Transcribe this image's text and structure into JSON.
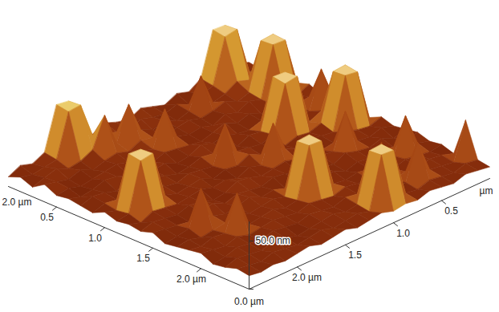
{
  "chart_data": {
    "type": "surface3d",
    "x": [
      0,
      0.125,
      0.25,
      0.375,
      0.5,
      0.625,
      0.75,
      0.875,
      1,
      1.125,
      1.25,
      1.375,
      1.5,
      1.625,
      1.75,
      1.875,
      2,
      2.125,
      2.25,
      2.375,
      2.5
    ],
    "y": [
      0,
      0.125,
      0.25,
      0.375,
      0.5,
      0.625,
      0.75,
      0.875,
      1,
      1.125,
      1.25,
      1.375,
      1.5,
      1.625,
      1.75,
      1.875,
      2,
      2.125,
      2.25,
      2.375,
      2.5
    ],
    "heights": [
      [
        14,
        18,
        64,
        65,
        20,
        12,
        16,
        10,
        14,
        18,
        12,
        15,
        20,
        14,
        22,
        60,
        62,
        18,
        12,
        16,
        10
      ],
      [
        12,
        16,
        65,
        63,
        18,
        14,
        10,
        16,
        12,
        14,
        18,
        12,
        16,
        20,
        24,
        61,
        60,
        16,
        14,
        12,
        15
      ],
      [
        16,
        14,
        18,
        22,
        15,
        12,
        45,
        14,
        10,
        16,
        12,
        18,
        50,
        16,
        50,
        20,
        14,
        12,
        18,
        14,
        10
      ],
      [
        10,
        65,
        64,
        16,
        12,
        18,
        14,
        12,
        16,
        14,
        10,
        15,
        18,
        12,
        16,
        14,
        10,
        16,
        12,
        15,
        18
      ],
      [
        14,
        64,
        65,
        14,
        18,
        12,
        16,
        10,
        14,
        12,
        16,
        50,
        14,
        18,
        12,
        16,
        14,
        12,
        10,
        14,
        12
      ],
      [
        18,
        12,
        16,
        14,
        10,
        16,
        12,
        18,
        14,
        10,
        12,
        14,
        16,
        12,
        18,
        10,
        14,
        16,
        12,
        10,
        14
      ],
      [
        12,
        16,
        14,
        18,
        12,
        14,
        10,
        12,
        16,
        14,
        18,
        12,
        10,
        16,
        14,
        12,
        18,
        10,
        14,
        16,
        12
      ],
      [
        16,
        50,
        12,
        14,
        64,
        65,
        14,
        16,
        10,
        12,
        14,
        16,
        12,
        10,
        14,
        18,
        12,
        16,
        12,
        14,
        10
      ],
      [
        12,
        14,
        18,
        12,
        65,
        63,
        16,
        12,
        14,
        16,
        50,
        12,
        14,
        16,
        12,
        14,
        18,
        64,
        65,
        12,
        16
      ],
      [
        14,
        65,
        64,
        16,
        12,
        14,
        10,
        14,
        12,
        18,
        12,
        14,
        10,
        16,
        14,
        12,
        16,
        65,
        63,
        14,
        12
      ],
      [
        10,
        63,
        65,
        12,
        14,
        16,
        12,
        18,
        50,
        12,
        16,
        10,
        14,
        12,
        16,
        14,
        12,
        14,
        16,
        10,
        14
      ],
      [
        16,
        12,
        14,
        18,
        12,
        10,
        14,
        12,
        16,
        14,
        12,
        16,
        18,
        12,
        10,
        14,
        16,
        12,
        14,
        16,
        12
      ],
      [
        12,
        16,
        12,
        14,
        50,
        14,
        16,
        12,
        10,
        14,
        16,
        12,
        14,
        16,
        12,
        18,
        14,
        10,
        12,
        14,
        16
      ],
      [
        14,
        10,
        16,
        12,
        14,
        18,
        12,
        14,
        16,
        12,
        10,
        14,
        12,
        18,
        14,
        12,
        16,
        50,
        14,
        12,
        10
      ],
      [
        16,
        14,
        12,
        16,
        12,
        14,
        10,
        16,
        12,
        65,
        64,
        12,
        16,
        14,
        12,
        16,
        14,
        12,
        10,
        14,
        12
      ],
      [
        12,
        16,
        50,
        14,
        16,
        12,
        14,
        12,
        14,
        64,
        65,
        14,
        12,
        16,
        14,
        12,
        50,
        14,
        16,
        12,
        14
      ],
      [
        14,
        12,
        14,
        16,
        12,
        45,
        12,
        14,
        16,
        12,
        14,
        16,
        12,
        14,
        16,
        14,
        12,
        16,
        12,
        14,
        16
      ],
      [
        10,
        14,
        16,
        12,
        14,
        12,
        16,
        10,
        14,
        16,
        12,
        14,
        16,
        12,
        14,
        16,
        12,
        14,
        16,
        12,
        10
      ],
      [
        50,
        12,
        14,
        16,
        50,
        14,
        12,
        65,
        64,
        14,
        12,
        16,
        14,
        12,
        10,
        14,
        16,
        12,
        14,
        16,
        12
      ],
      [
        14,
        16,
        12,
        14,
        16,
        12,
        14,
        64,
        65,
        12,
        16,
        14,
        12,
        16,
        14,
        12,
        14,
        16,
        12,
        14,
        16
      ],
      [
        12,
        14,
        16,
        12,
        14,
        16,
        12,
        14,
        12,
        16,
        14,
        12,
        16,
        14,
        12,
        16,
        14,
        12,
        14,
        12,
        14
      ]
    ],
    "xlim": [
      0,
      2.5
    ],
    "xticks": [
      0.5,
      {
        "value": 1,
        "label": "1.0"
      },
      1.5,
      {
        "value": 2,
        "label": "2.0 µm"
      }
    ],
    "ylim": [
      0,
      2.5
    ],
    "yticks": [
      0.5,
      {
        "value": 1,
        "label": "1.0"
      },
      1.5,
      {
        "value": 2,
        "label": "2.0 µm"
      }
    ],
    "zlim": [
      0,
      70
    ],
    "zticks": [
      {
        "value": 0,
        "label": "0.0 µm"
      },
      {
        "value": 50,
        "label": "50.0 nm"
      }
    ],
    "annotations": [
      "2.0 µm",
      "µm"
    ]
  }
}
